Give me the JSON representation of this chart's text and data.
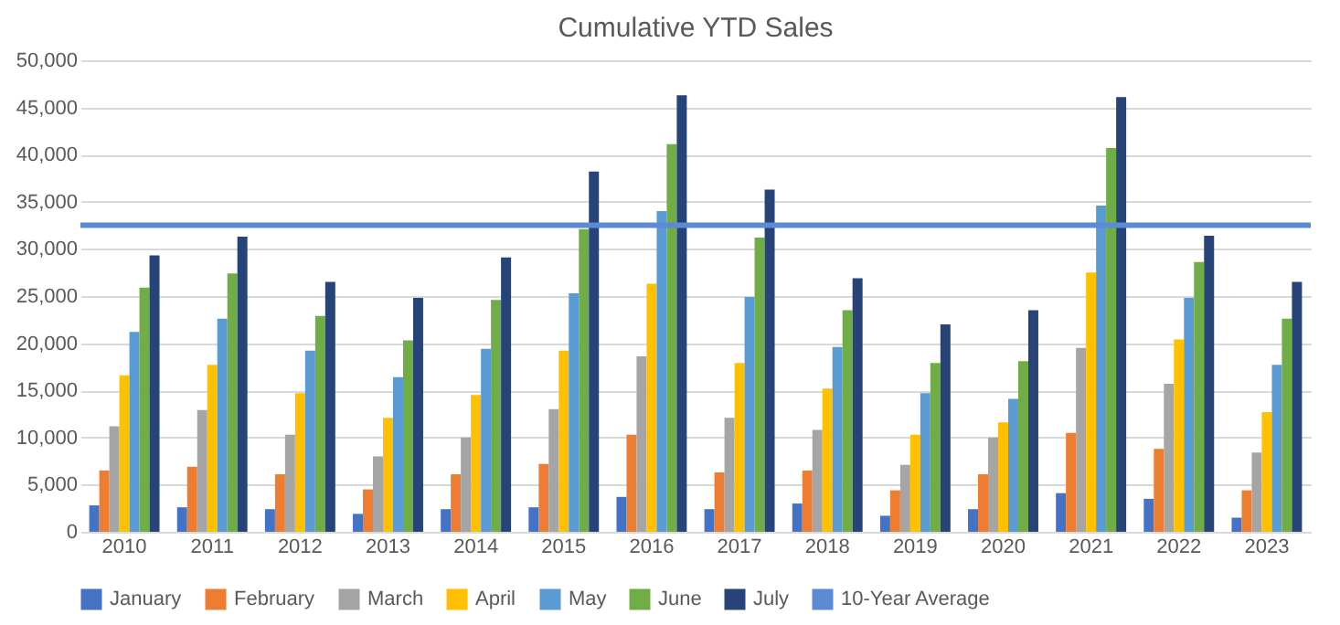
{
  "chart_data": {
    "type": "bar",
    "title": "Cumulative YTD Sales",
    "categories": [
      "2010",
      "2011",
      "2012",
      "2013",
      "2014",
      "2015",
      "2016",
      "2017",
      "2018",
      "2019",
      "2020",
      "2021",
      "2022",
      "2023"
    ],
    "series": [
      {
        "name": "January",
        "color": "#4472c4",
        "values": [
          2800,
          2600,
          2400,
          1900,
          2400,
          2600,
          3700,
          2400,
          3000,
          1700,
          2400,
          4100,
          3500,
          1500
        ]
      },
      {
        "name": "February",
        "color": "#ed7d31",
        "values": [
          6500,
          6900,
          6100,
          4500,
          6100,
          7200,
          10300,
          6300,
          6500,
          4400,
          6100,
          10500,
          8800,
          4400
        ]
      },
      {
        "name": "March",
        "color": "#a5a5a5",
        "values": [
          11200,
          12900,
          10300,
          8000,
          10000,
          13000,
          18600,
          12100,
          10800,
          7100,
          10000,
          19500,
          15700,
          8400
        ]
      },
      {
        "name": "April",
        "color": "#ffc000",
        "values": [
          16600,
          17700,
          14700,
          12100,
          14500,
          19200,
          26300,
          17900,
          15200,
          10300,
          11600,
          27500,
          20400,
          12700
        ]
      },
      {
        "name": "May",
        "color": "#5b9bd5",
        "values": [
          21200,
          22600,
          19200,
          16400,
          19400,
          25300,
          34000,
          24900,
          19600,
          14700,
          14100,
          34600,
          24800,
          17700
        ]
      },
      {
        "name": "June",
        "color": "#70ad47",
        "values": [
          25900,
          27400,
          22900,
          20300,
          24600,
          32100,
          41100,
          31200,
          23500,
          17900,
          18100,
          40700,
          28600,
          22600
        ]
      },
      {
        "name": "July",
        "color": "#264478",
        "values": [
          29300,
          31300,
          26500,
          24800,
          29100,
          38200,
          46300,
          36300,
          26900,
          22000,
          23500,
          46100,
          31400,
          26500
        ]
      }
    ],
    "ref_lines": [
      {
        "axis": "y",
        "value": 32500,
        "label": "10-Year Average",
        "color": "#5b8bd5"
      }
    ],
    "ylim": [
      0,
      50000
    ],
    "yticks": [
      {
        "value": 0,
        "label": "0"
      },
      {
        "value": 5000,
        "label": "5,000"
      },
      {
        "value": 10000,
        "label": "10,000"
      },
      {
        "value": 15000,
        "label": "15,000"
      },
      {
        "value": 20000,
        "label": "20,000"
      },
      {
        "value": 25000,
        "label": "25,000"
      },
      {
        "value": 30000,
        "label": "30,000"
      },
      {
        "value": 35000,
        "label": "35,000"
      },
      {
        "value": 40000,
        "label": "40,000"
      },
      {
        "value": 45000,
        "label": "45,000"
      },
      {
        "value": 50000,
        "label": "50,000"
      }
    ],
    "grid": "y",
    "legend": "bottom"
  }
}
